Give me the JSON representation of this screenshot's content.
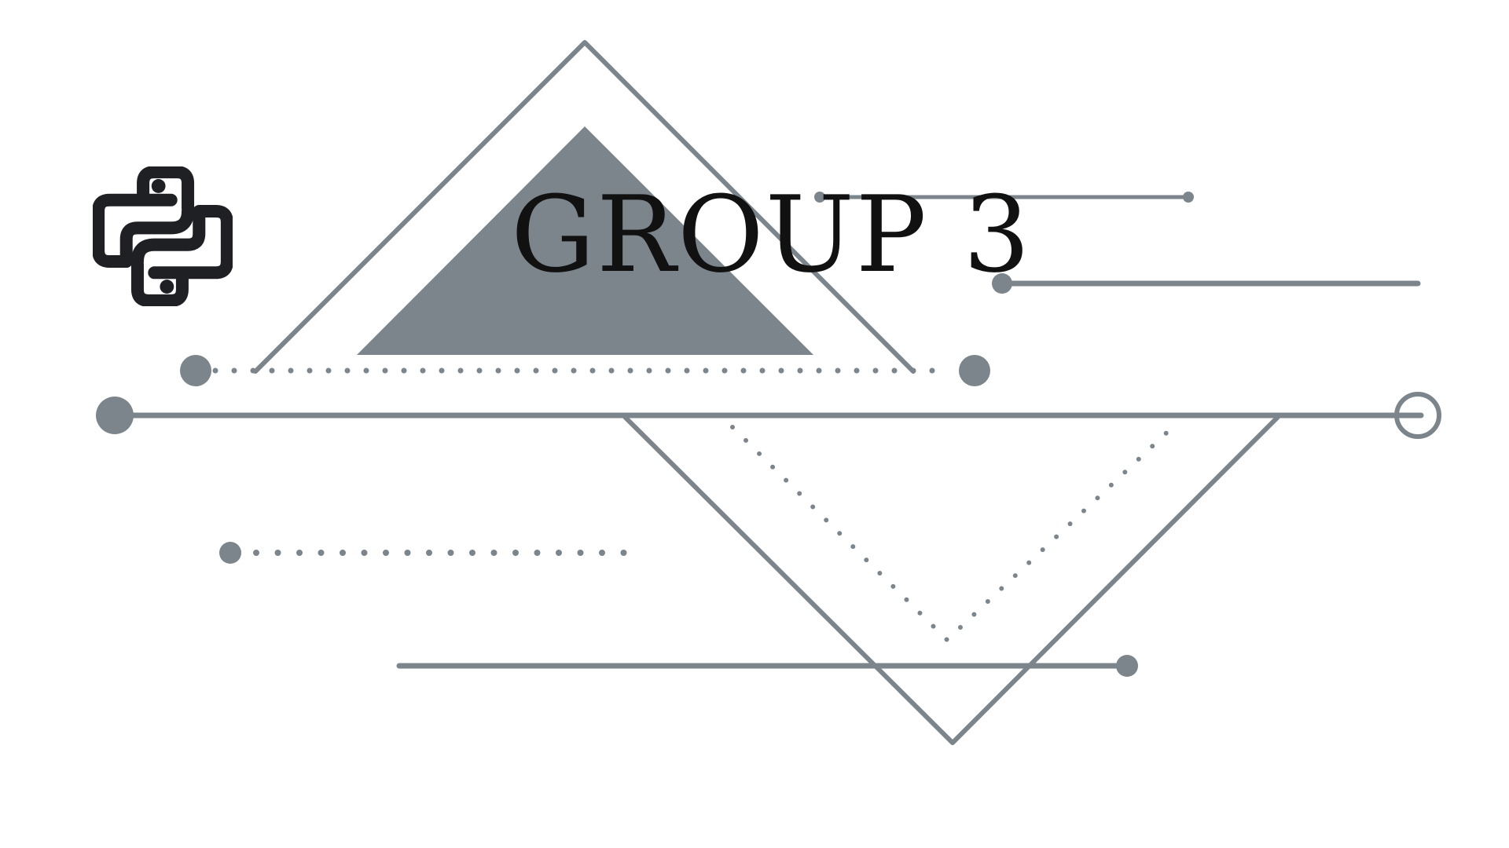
{
  "slide": {
    "title": "GROUP 3"
  },
  "icons": {
    "logo": "python-logo-icon"
  },
  "colors": {
    "accent": "#7C858C",
    "icon": "#1F2024",
    "background": "#FFFFFF",
    "text": "#111111"
  }
}
